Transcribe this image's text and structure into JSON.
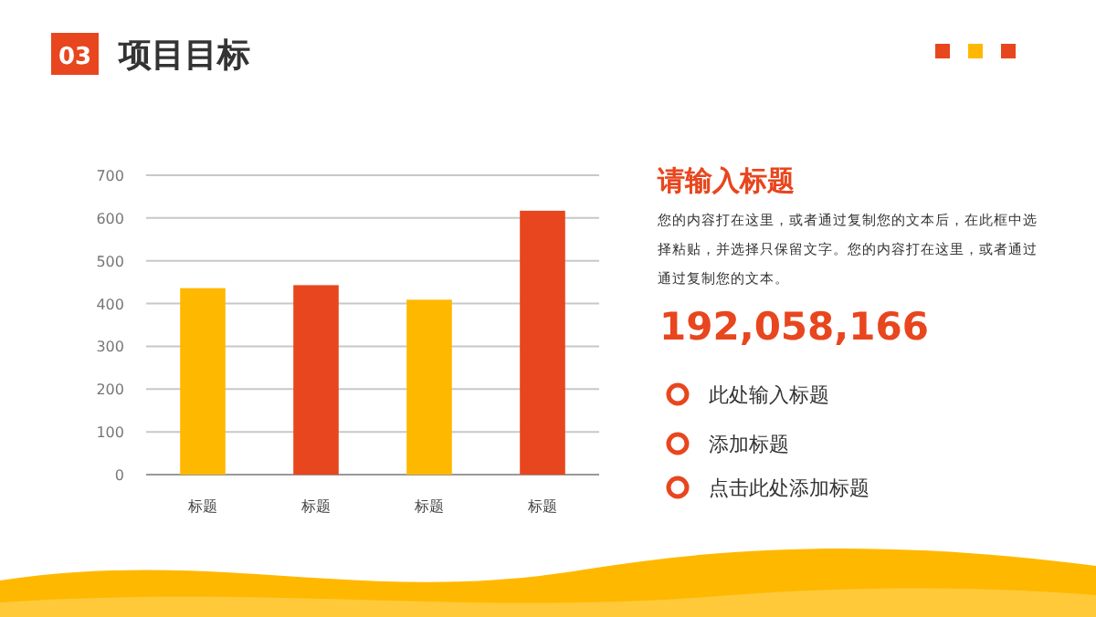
{
  "chart_data": [
    {
      "type": "bar",
      "title": "项目目标",
      "annotations": [
        "03"
      ],
      "categories": [
        "标题",
        "标题",
        "标题",
        "标题"
      ],
      "values": [
        436,
        443,
        409,
        617
      ],
      "colors": [
        "#ffb800",
        "#e8461e",
        "#ffb800",
        "#e8461e"
      ],
      "ylim": [
        0,
        700
      ],
      "yticks": [
        0,
        100,
        200,
        300,
        400,
        500,
        600,
        700
      ],
      "grid": "y"
    },
    {
      "type": "other",
      "title": "请输入标题",
      "annotations": [
        "您的内容打在这里，或者通过复制您的文本后，在此框中选择粘贴，并选择只保留文字。您的内容打在这里，或者通过通过复制您的文本。",
        "192,058,166",
        "此处输入标题",
        "添加标题",
        "点击此处添加标题"
      ]
    }
  ]
}
